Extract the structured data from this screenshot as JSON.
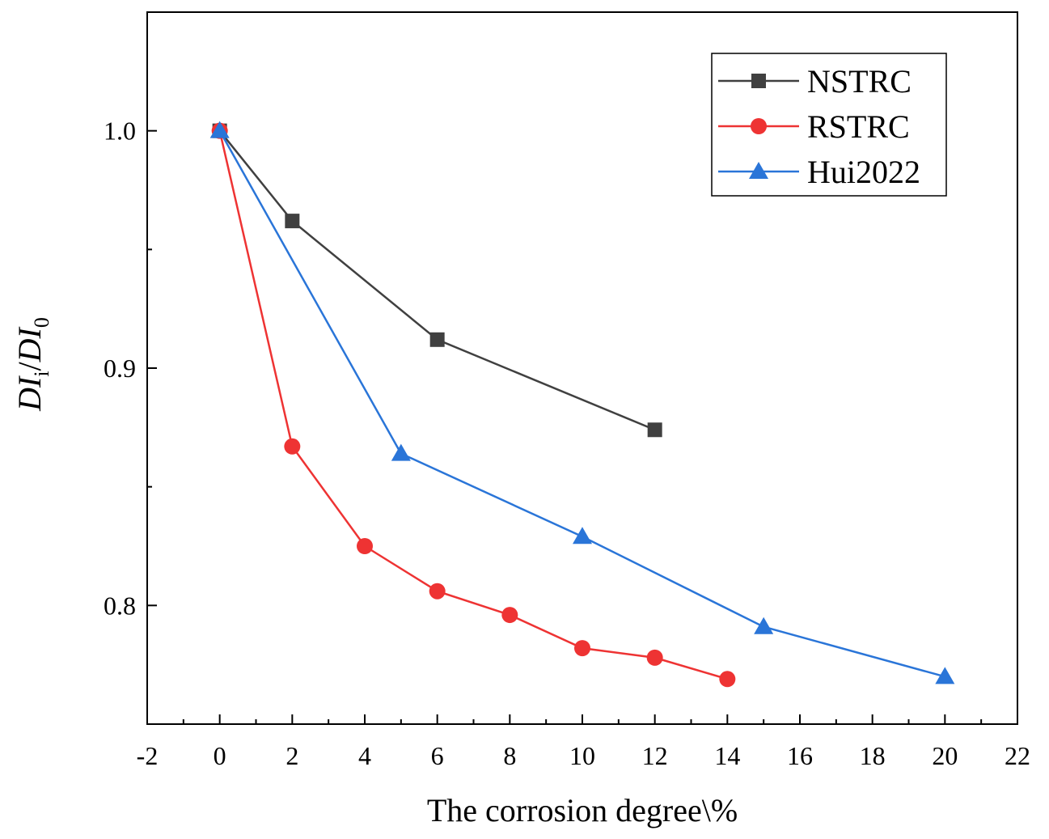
{
  "chart_data": {
    "type": "line",
    "title": "",
    "xlabel": "The corrosion degree\\%",
    "ylabel": {
      "main": "DI",
      "sub_i": "i",
      "slash": "/",
      "main2": "DI",
      "sub_0": "0"
    },
    "xlim": [
      -2,
      22
    ],
    "ylim": [
      0.75,
      1.05
    ],
    "x_ticks": [
      -2,
      0,
      2,
      4,
      6,
      8,
      10,
      12,
      14,
      16,
      18,
      20,
      22
    ],
    "x_tick_labels": [
      "-2",
      "0",
      "2",
      "4",
      "6",
      "8",
      "10",
      "12",
      "14",
      "16",
      "18",
      "20",
      "22"
    ],
    "y_ticks": [
      0.8,
      0.9,
      1.0
    ],
    "y_tick_labels": [
      "0.8",
      "0.9",
      "1.0"
    ],
    "grid": false,
    "legend_position": "top-right",
    "series": [
      {
        "name": "NSTRC",
        "color": "#404040",
        "marker": "square",
        "x": [
          0,
          2,
          6,
          12
        ],
        "y": [
          1.0,
          0.962,
          0.912,
          0.874
        ]
      },
      {
        "name": "RSTRC",
        "color": "#ee3333",
        "marker": "circle",
        "x": [
          0,
          2,
          4,
          6,
          8,
          10,
          12,
          14
        ],
        "y": [
          1.0,
          0.867,
          0.825,
          0.806,
          0.796,
          0.782,
          0.778,
          0.769
        ]
      },
      {
        "name": "Hui2022",
        "color": "#2a75d8",
        "marker": "triangle",
        "x": [
          0,
          5,
          10,
          15,
          20
        ],
        "y": [
          1.0,
          0.864,
          0.829,
          0.791,
          0.77
        ]
      }
    ]
  }
}
